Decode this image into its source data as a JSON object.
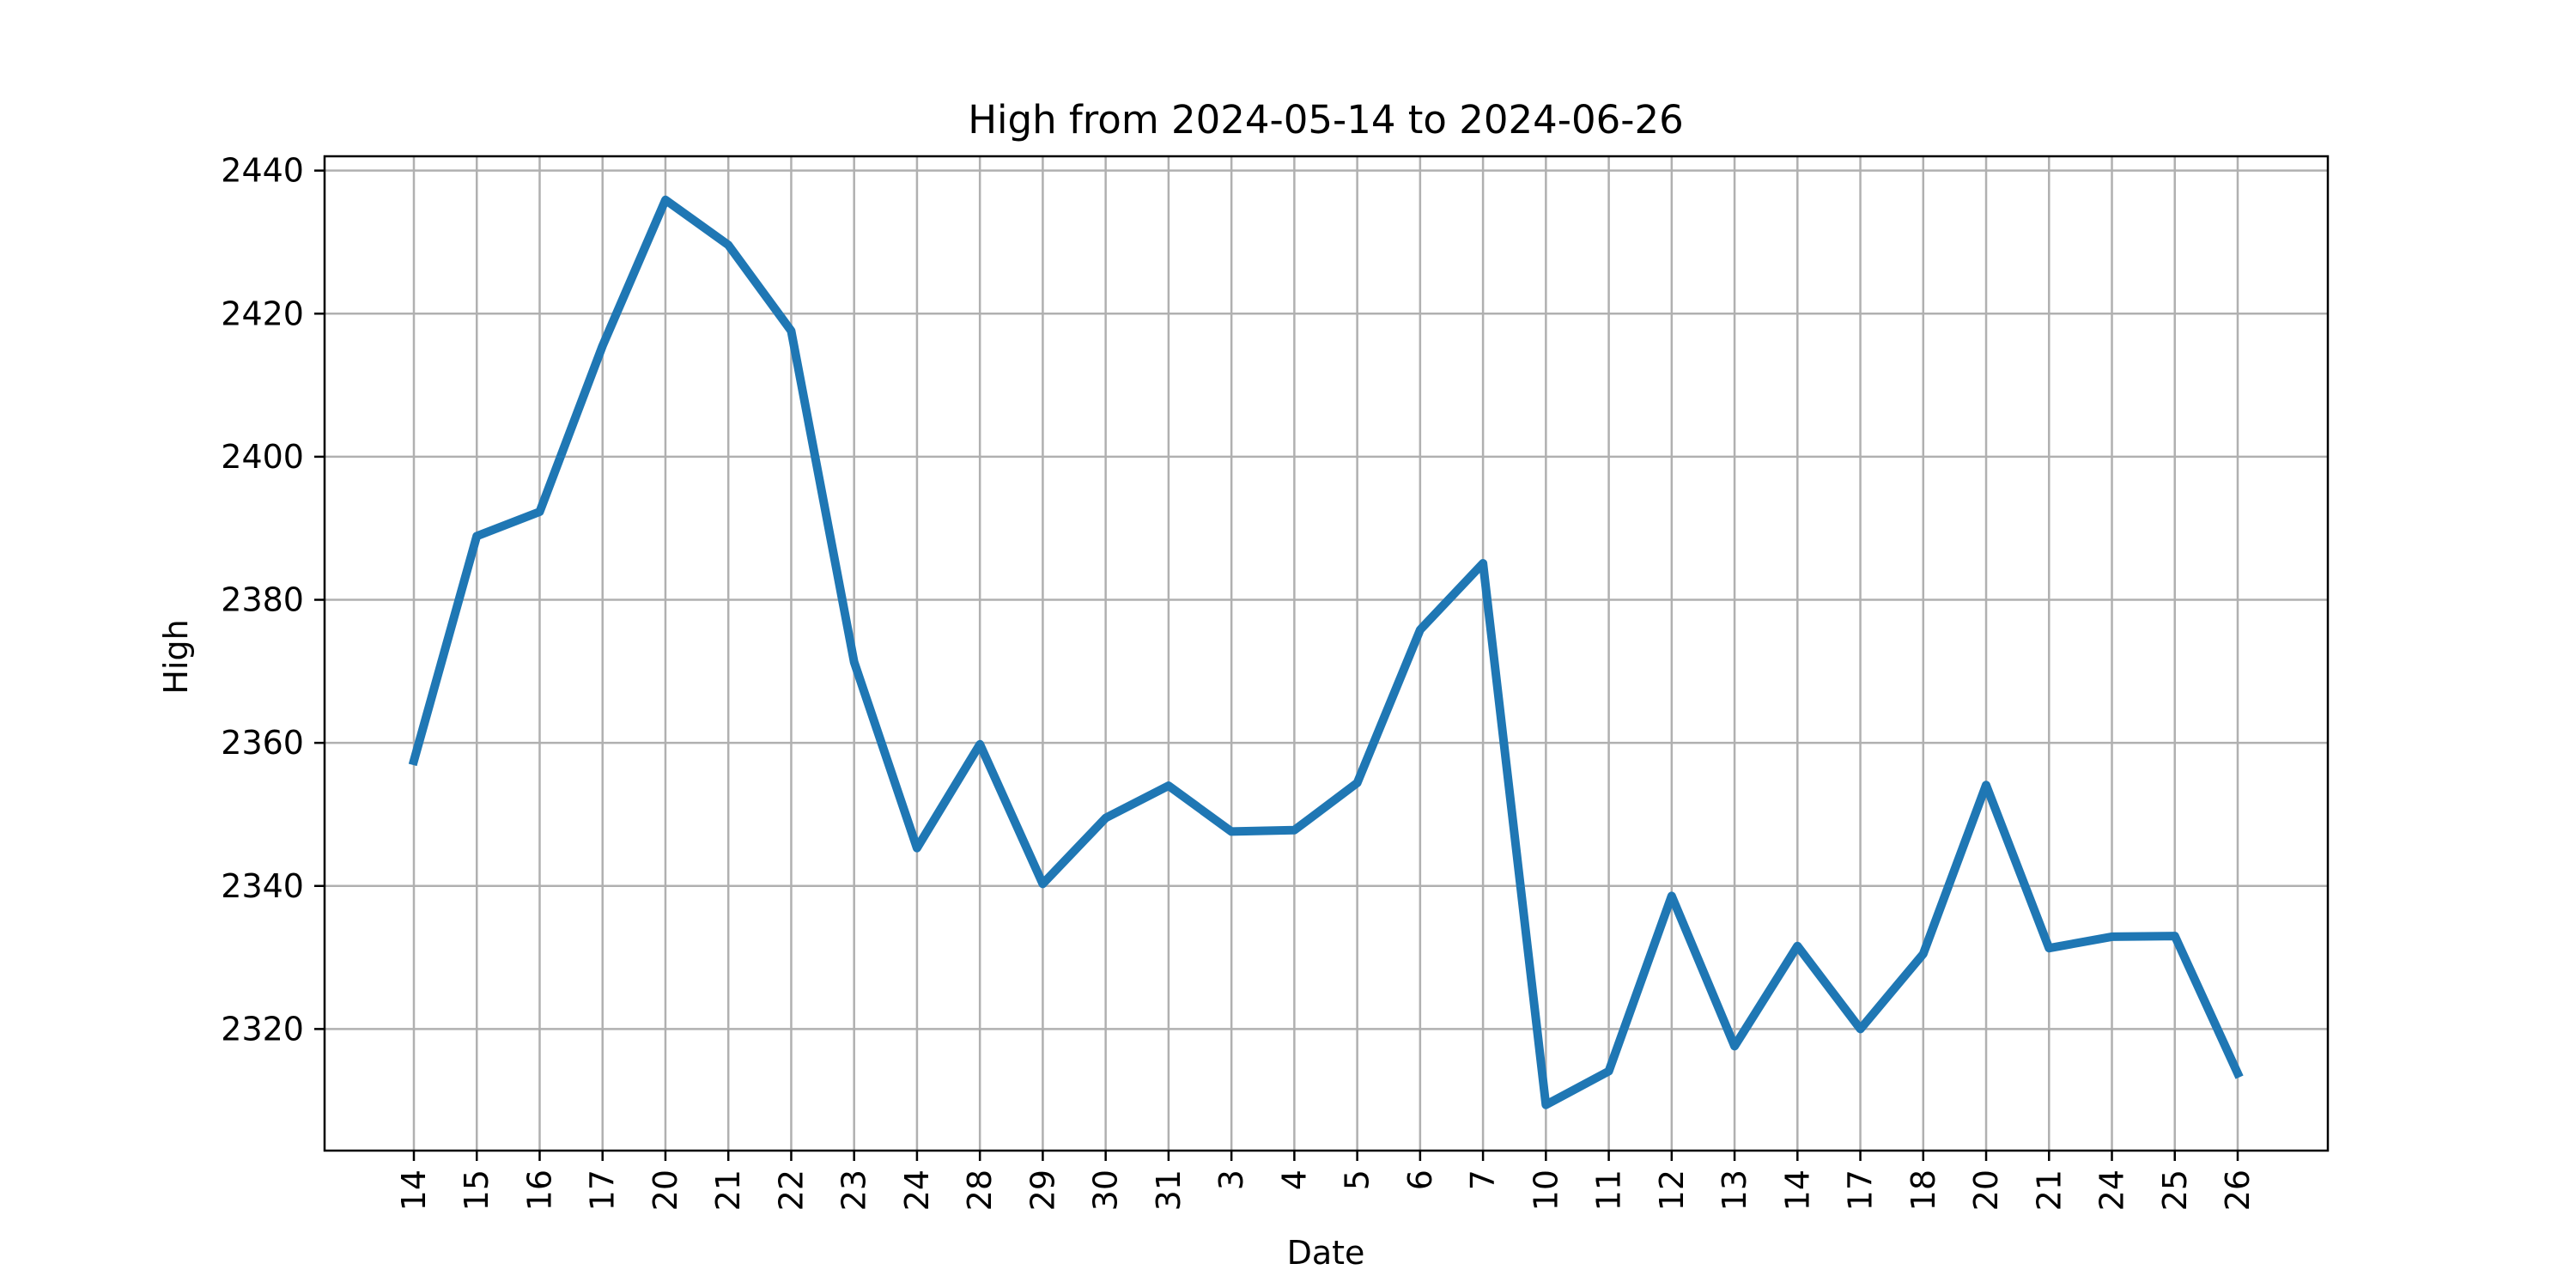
{
  "chart_data": {
    "type": "line",
    "title": "High from 2024-05-14 to 2024-06-26",
    "xlabel": "Date",
    "ylabel": "High",
    "grid": true,
    "ylim": [
      2303,
      2442
    ],
    "yticks": [
      2320,
      2340,
      2360,
      2380,
      2400,
      2420,
      2440
    ],
    "x": [
      "2024-05-14",
      "2024-05-15",
      "2024-05-16",
      "2024-05-17",
      "2024-05-20",
      "2024-05-21",
      "2024-05-22",
      "2024-05-23",
      "2024-05-24",
      "2024-05-28",
      "2024-05-29",
      "2024-05-30",
      "2024-05-31",
      "2024-06-03",
      "2024-06-04",
      "2024-06-05",
      "2024-06-06",
      "2024-06-07",
      "2024-06-10",
      "2024-06-11",
      "2024-06-12",
      "2024-06-13",
      "2024-06-14",
      "2024-06-17",
      "2024-06-18",
      "2024-06-20",
      "2024-06-21",
      "2024-06-24",
      "2024-06-25",
      "2024-06-26"
    ],
    "xtick_labels": [
      "14",
      "15",
      "16",
      "17",
      "20",
      "21",
      "22",
      "23",
      "24",
      "28",
      "29",
      "30",
      "31",
      "3",
      "4",
      "5",
      "6",
      "7",
      "10",
      "11",
      "12",
      "13",
      "14",
      "17",
      "18",
      "20",
      "21",
      "24",
      "25",
      "26"
    ],
    "series": [
      {
        "color": "#1f77b4",
        "values": [
          2357.5,
          2388.9,
          2392.3,
          2415.5,
          2435.9,
          2429.6,
          2417.6,
          2371.3,
          2345.3,
          2359.8,
          2340.3,
          2349.5,
          2354.0,
          2347.6,
          2347.8,
          2354.4,
          2375.8,
          2385.1,
          2309.4,
          2314.1,
          2338.6,
          2317.6,
          2331.6,
          2320.0,
          2330.5,
          2354.1,
          2331.3,
          2332.9,
          2333.0,
          2313.8
        ]
      }
    ]
  }
}
